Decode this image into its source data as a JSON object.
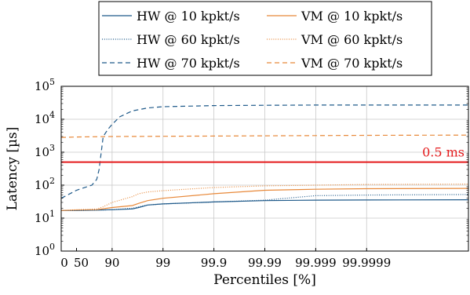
{
  "chart_data": {
    "type": "line",
    "xlabel": "Percentiles [%]",
    "ylabel": "Latency [µs]",
    "x_scale": "reciprocal-percentile",
    "y_scale": "log",
    "ylim": [
      1,
      100000
    ],
    "xlim": [
      0,
      99.999999
    ],
    "x_ticks": [
      {
        "value": 0,
        "label": "0"
      },
      {
        "value": 50,
        "label": "50"
      },
      {
        "value": 90,
        "label": "90"
      },
      {
        "value": 99,
        "label": "99"
      },
      {
        "value": 99.9,
        "label": "99.9"
      },
      {
        "value": 99.99,
        "label": "99.99"
      },
      {
        "value": 99.999,
        "label": "99.999"
      },
      {
        "value": 99.9999,
        "label": "99.9999"
      }
    ],
    "y_ticks": [
      {
        "value": 1,
        "base": "10",
        "exp": "0"
      },
      {
        "value": 10,
        "base": "10",
        "exp": "1"
      },
      {
        "value": 100,
        "base": "10",
        "exp": "2"
      },
      {
        "value": 1000,
        "base": "10",
        "exp": "3"
      },
      {
        "value": 10000,
        "base": "10",
        "exp": "4"
      },
      {
        "value": 100000,
        "base": "10",
        "exp": "5"
      }
    ],
    "grid": true,
    "legend_position": "top",
    "threshold": {
      "value": 500,
      "label": "0.5 ms",
      "color": "#e41a1c"
    },
    "colors": {
      "hw": "#1f5a8a",
      "vm": "#e8893a"
    },
    "series": [
      {
        "name": "HW @ 10 kpkt/s",
        "group": "hw",
        "dash": "solid",
        "x": [
          0,
          50,
          80,
          90,
          96,
          97,
          98,
          99,
          99.9,
          99.99,
          99.999,
          99.9999,
          99.999999
        ],
        "y": [
          17,
          17,
          17.5,
          18,
          19,
          21,
          25,
          27,
          31,
          34,
          35,
          35.5,
          36
        ]
      },
      {
        "name": "VM @ 10 kpkt/s",
        "group": "vm",
        "dash": "solid",
        "x": [
          0,
          50,
          80,
          90,
          96,
          97,
          98,
          99,
          99.9,
          99.99,
          99.999,
          99.9999,
          99.999999
        ],
        "y": [
          17,
          17.5,
          18,
          21,
          24,
          28,
          34,
          40,
          55,
          70,
          75,
          78,
          80
        ]
      },
      {
        "name": "HW @ 60 kpkt/s",
        "group": "hw",
        "dash": "dotted",
        "x": [
          0,
          50,
          80,
          90,
          96,
          97,
          98,
          99,
          99.9,
          99.99,
          99.999,
          99.9999,
          99.999999
        ],
        "y": [
          17,
          17,
          17.5,
          18,
          20,
          22,
          25,
          27,
          31,
          35,
          48,
          50,
          52
        ]
      },
      {
        "name": "VM @ 60 kpkt/s",
        "group": "vm",
        "dash": "dotted",
        "x": [
          0,
          50,
          80,
          85,
          90,
          96,
          97,
          98,
          99,
          99.9,
          99.99,
          99.999,
          99.9999,
          99.999999
        ],
        "y": [
          17,
          18,
          19,
          22,
          30,
          45,
          55,
          62,
          68,
          85,
          95,
          100,
          105,
          108
        ]
      },
      {
        "name": "HW @ 70 kpkt/s",
        "group": "hw",
        "dash": "dashed",
        "x": [
          0,
          50,
          75,
          80,
          82,
          85,
          88,
          90,
          93,
          96,
          98,
          99,
          99.9,
          99.99,
          99.999,
          99.9999,
          99.999999
        ],
        "y": [
          40,
          70,
          100,
          150,
          300,
          3000,
          5000,
          7000,
          12000,
          18000,
          22000,
          24000,
          26000,
          26500,
          27000,
          27000,
          27000
        ]
      },
      {
        "name": "VM @ 70 kpkt/s",
        "group": "vm",
        "dash": "dashed",
        "x": [
          0,
          50,
          90,
          99,
          99.9,
          99.99,
          99.999,
          99.9999,
          99.999999
        ],
        "y": [
          2800,
          2900,
          3000,
          3050,
          3100,
          3150,
          3200,
          3250,
          3300
        ]
      }
    ]
  }
}
